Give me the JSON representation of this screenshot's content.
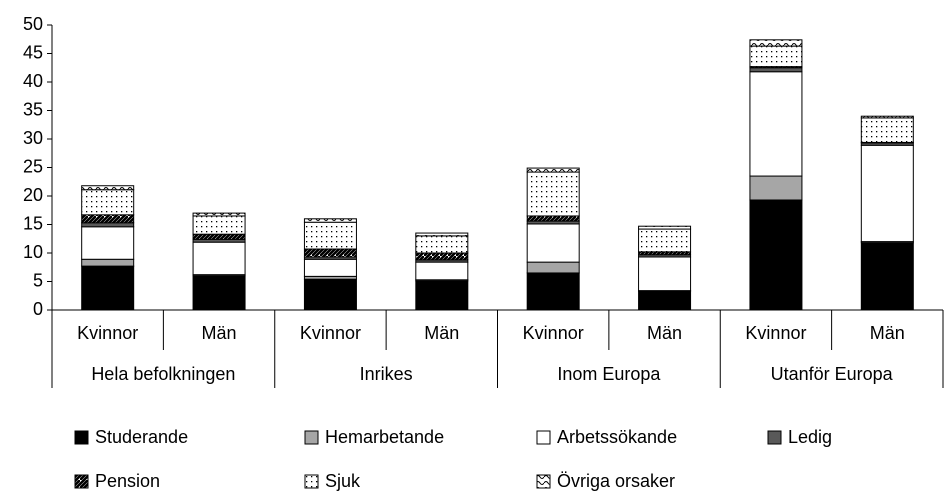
{
  "chart_data": {
    "type": "stacked_bar",
    "categories": [
      "Kvinnor",
      "Män",
      "Kvinnor",
      "Män",
      "Kvinnor",
      "Män",
      "Kvinnor",
      "Män"
    ],
    "groups": [
      "Hela befolkningen",
      "Inrikes",
      "Inom Europa",
      "Utanför Europa"
    ],
    "series": [
      {
        "name": "Studerande",
        "color": "#000000",
        "pattern": "solid",
        "values": [
          7.7,
          6.0,
          5.4,
          5.1,
          6.5,
          3.3,
          19.3,
          11.8
        ]
      },
      {
        "name": "Hemarbetande",
        "color": "#a6a6a6",
        "pattern": "solid",
        "values": [
          1.2,
          0.2,
          0.5,
          0.2,
          1.9,
          0.1,
          4.2,
          0.2
        ]
      },
      {
        "name": "Arbetssökande",
        "color": "#ffffff",
        "pattern": "solid",
        "values": [
          5.7,
          5.7,
          3.0,
          3.1,
          6.7,
          5.9,
          18.3,
          16.9
        ]
      },
      {
        "name": "Ledig",
        "color": "#595959",
        "pattern": "solid",
        "values": [
          0.7,
          0.5,
          0.4,
          0.4,
          0.5,
          0.4,
          0.7,
          0.4
        ]
      },
      {
        "name": "Pension",
        "color": "#000000",
        "pattern": "diagonal",
        "values": [
          1.4,
          0.9,
          1.4,
          1.2,
          0.9,
          0.5,
          0.2,
          0.1
        ]
      },
      {
        "name": "Sjuk",
        "color": "#000000",
        "pattern": "dots",
        "values": [
          4.4,
          3.2,
          4.7,
          3.0,
          7.7,
          4.0,
          3.6,
          4.3
        ]
      },
      {
        "name": "Övriga orsaker",
        "color": "#000000",
        "pattern": "waves",
        "values": [
          0.7,
          0.5,
          0.6,
          0.5,
          0.7,
          0.5,
          1.1,
          0.3
        ]
      }
    ],
    "ylim": [
      0,
      50
    ],
    "yticks": [
      0,
      5,
      10,
      15,
      20,
      25,
      30,
      35,
      40,
      45,
      50
    ]
  }
}
